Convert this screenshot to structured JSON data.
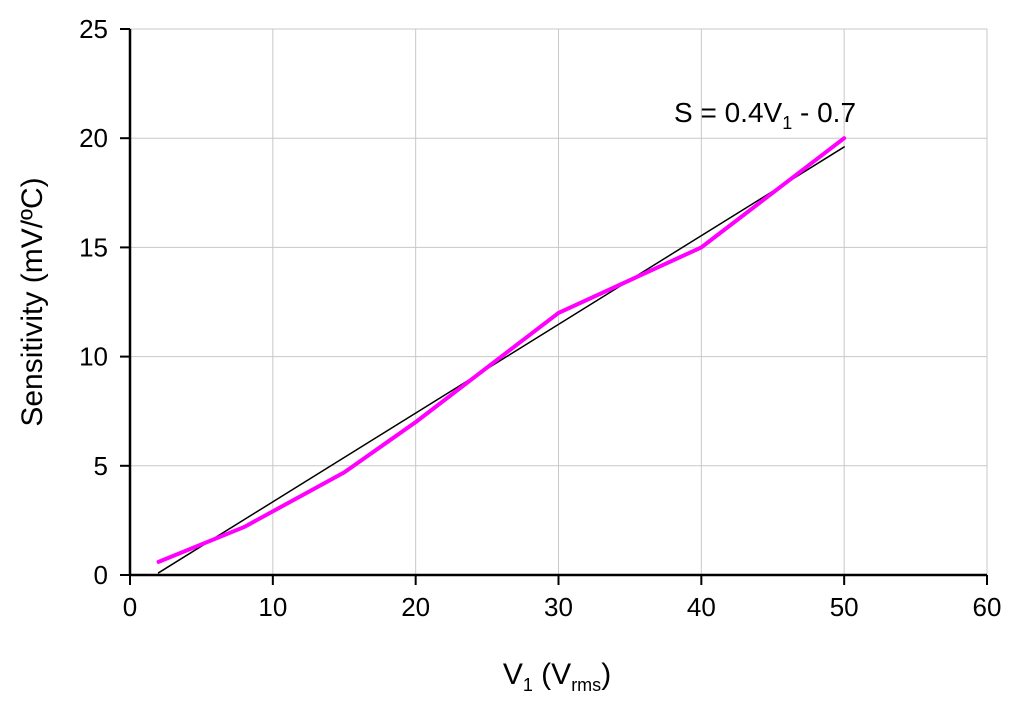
{
  "chart_data": {
    "type": "line",
    "xlabel": {
      "main": "V",
      "sub1": "1",
      "paren_open": " (V",
      "sub2": "rms",
      "paren_close": ")"
    },
    "ylabel": "Sensitivity (mV/ºC)",
    "xlim": [
      0,
      60
    ],
    "ylim": [
      0,
      25
    ],
    "x_ticks": [
      0,
      10,
      20,
      30,
      40,
      50,
      60
    ],
    "y_ticks": [
      0,
      5,
      10,
      15,
      20,
      25
    ],
    "grid": true,
    "series": [
      {
        "color": "#ff00ff",
        "x": [
          2,
          8,
          15,
          20,
          30,
          40,
          50
        ],
        "y": [
          0.6,
          2.2,
          4.7,
          7,
          12,
          15,
          20
        ]
      },
      {
        "color": "#000000",
        "x": [
          2,
          50
        ],
        "y": [
          0.1,
          19.6
        ]
      }
    ],
    "annotation": {
      "prefix": "S = 0.4V",
      "sub": "1",
      "suffix": " - 0.7",
      "x": 49.5,
      "y": 21.2
    }
  }
}
